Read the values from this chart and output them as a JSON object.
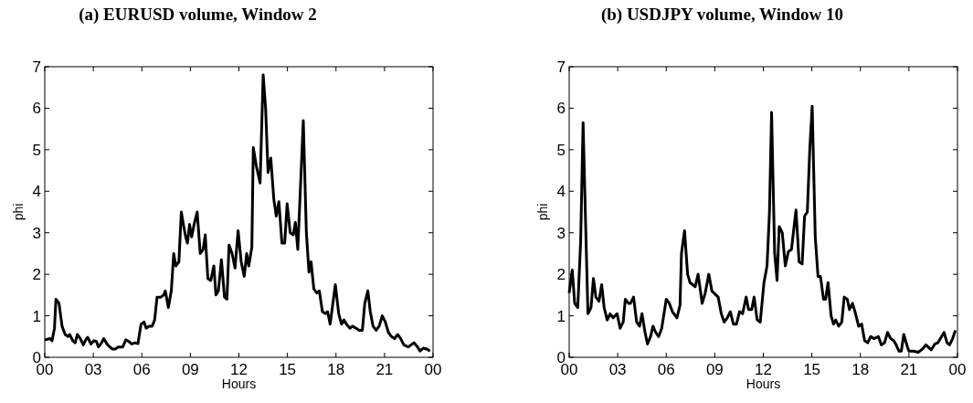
{
  "chart_data": [
    {
      "type": "line",
      "title": "(a) EURUSD volume, Window 2",
      "xlabel": "Hours",
      "ylabel": "phi",
      "xlim": [
        0,
        24
      ],
      "ylim": [
        0,
        7
      ],
      "xticks": [
        {
          "value": 0,
          "label": "00"
        },
        {
          "value": 3,
          "label": "03"
        },
        {
          "value": 6,
          "label": "06"
        },
        {
          "value": 9,
          "label": "09"
        },
        {
          "value": 12,
          "label": "12"
        },
        {
          "value": 15,
          "label": "15"
        },
        {
          "value": 18,
          "label": "18"
        },
        {
          "value": 21,
          "label": "21"
        },
        {
          "value": 24,
          "label": "00"
        }
      ],
      "yticks": [
        0,
        1,
        2,
        3,
        4,
        5,
        6,
        7
      ],
      "grid": false,
      "marker": "none",
      "line_style": "solid",
      "series": [
        {
          "color": "#000000",
          "x": [
            0,
            0.32,
            0.45,
            0.6,
            0.69,
            0.88,
            1.07,
            1.26,
            1.44,
            1.54,
            1.73,
            1.88,
            2.01,
            2.2,
            2.38,
            2.57,
            2.66,
            2.85,
            3.04,
            3.19,
            3.32,
            3.51,
            3.64,
            3.88,
            4.17,
            4.35,
            4.54,
            4.82,
            5.01,
            5.2,
            5.38,
            5.57,
            5.76,
            5.95,
            6.14,
            6.27,
            6.45,
            6.64,
            6.79,
            6.94,
            7.17,
            7.35,
            7.45,
            7.64,
            7.82,
            7.97,
            8.1,
            8.29,
            8.44,
            8.57,
            8.71,
            8.82,
            8.95,
            9.08,
            9.23,
            9.42,
            9.61,
            9.79,
            9.92,
            10.08,
            10.26,
            10.45,
            10.58,
            10.73,
            10.92,
            11.11,
            11.26,
            11.39,
            11.58,
            11.76,
            11.95,
            12.14,
            12.33,
            12.48,
            12.61,
            12.8,
            12.89,
            13.08,
            13.31,
            13.5,
            13.65,
            13.8,
            13.97,
            14.16,
            14.31,
            14.47,
            14.66,
            14.83,
            14.98,
            15.17,
            15.36,
            15.49,
            15.64,
            15.98,
            16.17,
            16.33,
            16.46,
            16.63,
            16.82,
            16.97,
            17.16,
            17.35,
            17.48,
            17.64,
            17.96,
            18.17,
            18.34,
            18.49,
            18.68,
            18.87,
            19.02,
            19.25,
            19.44,
            19.63,
            19.78,
            19.97,
            20.12,
            20.29,
            20.48,
            20.67,
            20.86,
            21.05,
            21.24,
            21.43,
            21.62,
            21.81,
            22.0,
            22.19,
            22.47,
            22.82,
            23.04,
            23.2,
            23.39,
            23.62,
            23.81
          ],
          "values": [
            0.42,
            0.45,
            0.4,
            0.7,
            1.4,
            1.3,
            0.75,
            0.55,
            0.5,
            0.55,
            0.4,
            0.35,
            0.55,
            0.45,
            0.3,
            0.45,
            0.48,
            0.32,
            0.4,
            0.38,
            0.25,
            0.35,
            0.45,
            0.3,
            0.2,
            0.2,
            0.25,
            0.25,
            0.42,
            0.38,
            0.32,
            0.35,
            0.33,
            0.8,
            0.85,
            0.7,
            0.75,
            0.75,
            0.9,
            1.45,
            1.45,
            1.5,
            1.6,
            1.2,
            1.6,
            2.5,
            2.2,
            2.3,
            3.5,
            3.2,
            2.9,
            2.75,
            3.2,
            2.9,
            3.2,
            3.5,
            2.5,
            2.6,
            2.95,
            1.9,
            1.85,
            2.2,
            1.5,
            1.6,
            2.35,
            1.45,
            1.4,
            2.7,
            2.5,
            2.15,
            3.05,
            2.3,
            1.95,
            2.5,
            2.2,
            2.65,
            5.05,
            4.6,
            4.2,
            6.8,
            6.0,
            4.45,
            4.8,
            3.8,
            3.4,
            3.75,
            2.75,
            2.75,
            3.7,
            3.0,
            2.95,
            3.25,
            2.6,
            5.7,
            3.0,
            2.05,
            2.3,
            1.65,
            1.55,
            1.6,
            1.1,
            1.05,
            1.1,
            0.8,
            1.75,
            1.05,
            0.8,
            0.9,
            0.78,
            0.7,
            0.75,
            0.7,
            0.65,
            0.65,
            1.3,
            1.6,
            1.1,
            0.75,
            0.65,
            0.75,
            1.0,
            0.85,
            0.6,
            0.5,
            0.45,
            0.55,
            0.45,
            0.3,
            0.25,
            0.35,
            0.25,
            0.15,
            0.22,
            0.2,
            0.15
          ]
        }
      ]
    },
    {
      "type": "line",
      "title": "(b) USDJPY volume, Window 10",
      "xlabel": "Hours",
      "ylabel": "phi",
      "xlim": [
        0,
        24
      ],
      "ylim": [
        0,
        7
      ],
      "xticks": [
        {
          "value": 0,
          "label": "00"
        },
        {
          "value": 3,
          "label": "03"
        },
        {
          "value": 6,
          "label": "06"
        },
        {
          "value": 9,
          "label": "09"
        },
        {
          "value": 12,
          "label": "12"
        },
        {
          "value": 15,
          "label": "15"
        },
        {
          "value": 18,
          "label": "18"
        },
        {
          "value": 21,
          "label": "21"
        },
        {
          "value": 24,
          "label": "00"
        }
      ],
      "yticks": [
        0,
        1,
        2,
        3,
        4,
        5,
        6,
        7
      ],
      "grid": false,
      "marker": "none",
      "line_style": "solid",
      "series": [
        {
          "color": "#000000",
          "x": [
            0,
            0.19,
            0.34,
            0.53,
            0.71,
            0.86,
            1.03,
            1.16,
            1.35,
            1.5,
            1.65,
            1.84,
            2.01,
            2.16,
            2.35,
            2.53,
            2.72,
            2.96,
            3.15,
            3.34,
            3.47,
            3.66,
            3.79,
            3.98,
            4.17,
            4.35,
            4.5,
            4.69,
            4.84,
            5.03,
            5.18,
            5.35,
            5.53,
            5.72,
            6.0,
            6.19,
            6.38,
            6.66,
            6.85,
            6.94,
            7.13,
            7.32,
            7.47,
            7.79,
            7.97,
            8.22,
            8.41,
            8.63,
            8.82,
            9.21,
            9.4,
            9.58,
            9.77,
            9.96,
            10.15,
            10.34,
            10.53,
            10.72,
            10.94,
            11.09,
            11.28,
            11.43,
            11.62,
            11.81,
            12.04,
            12.23,
            12.38,
            12.51,
            12.7,
            12.85,
            12.98,
            13.17,
            13.36,
            13.55,
            13.74,
            14.02,
            14.21,
            14.4,
            14.55,
            14.72,
            14.87,
            15.02,
            15.21,
            15.38,
            15.53,
            15.72,
            15.85,
            16.0,
            16.19,
            16.34,
            16.47,
            16.66,
            16.85,
            17.0,
            17.19,
            17.32,
            17.51,
            17.7,
            17.89,
            18.08,
            18.26,
            18.45,
            18.64,
            18.83,
            19.11,
            19.3,
            19.49,
            19.68,
            19.87,
            20.06,
            20.21,
            20.38,
            20.53,
            20.68,
            20.91,
            21.0,
            21.28,
            21.57,
            21.85,
            22.04,
            22.38,
            22.6,
            22.79,
            23.02,
            23.17,
            23.36,
            23.51,
            23.7,
            23.87
          ],
          "values": [
            1.55,
            2.1,
            1.3,
            1.2,
            2.8,
            5.65,
            3.0,
            1.05,
            1.2,
            1.9,
            1.45,
            1.35,
            1.75,
            1.2,
            0.9,
            1.05,
            0.95,
            1.05,
            0.7,
            0.85,
            1.4,
            1.3,
            1.3,
            1.45,
            0.85,
            0.75,
            1.05,
            0.6,
            0.32,
            0.5,
            0.75,
            0.6,
            0.5,
            0.7,
            1.4,
            1.3,
            1.1,
            0.95,
            1.25,
            2.5,
            3.05,
            2.0,
            1.8,
            1.7,
            2.0,
            1.3,
            1.55,
            2.0,
            1.6,
            1.45,
            1.05,
            0.85,
            0.95,
            1.1,
            0.8,
            0.8,
            1.1,
            1.05,
            1.45,
            1.15,
            1.15,
            1.45,
            0.9,
            0.85,
            1.8,
            2.2,
            3.5,
            5.9,
            2.5,
            1.85,
            3.15,
            3.0,
            2.2,
            2.55,
            2.6,
            3.55,
            2.3,
            2.25,
            3.4,
            3.5,
            5.0,
            6.05,
            2.9,
            1.95,
            1.95,
            1.4,
            1.4,
            1.8,
            1.0,
            0.8,
            0.9,
            0.75,
            0.85,
            1.45,
            1.4,
            1.15,
            1.3,
            1.05,
            0.75,
            0.8,
            0.4,
            0.35,
            0.5,
            0.45,
            0.5,
            0.3,
            0.35,
            0.6,
            0.45,
            0.4,
            0.3,
            0.15,
            0.15,
            0.55,
            0.25,
            0.15,
            0.15,
            0.12,
            0.2,
            0.3,
            0.18,
            0.32,
            0.35,
            0.5,
            0.6,
            0.35,
            0.3,
            0.45,
            0.65
          ]
        }
      ]
    }
  ]
}
